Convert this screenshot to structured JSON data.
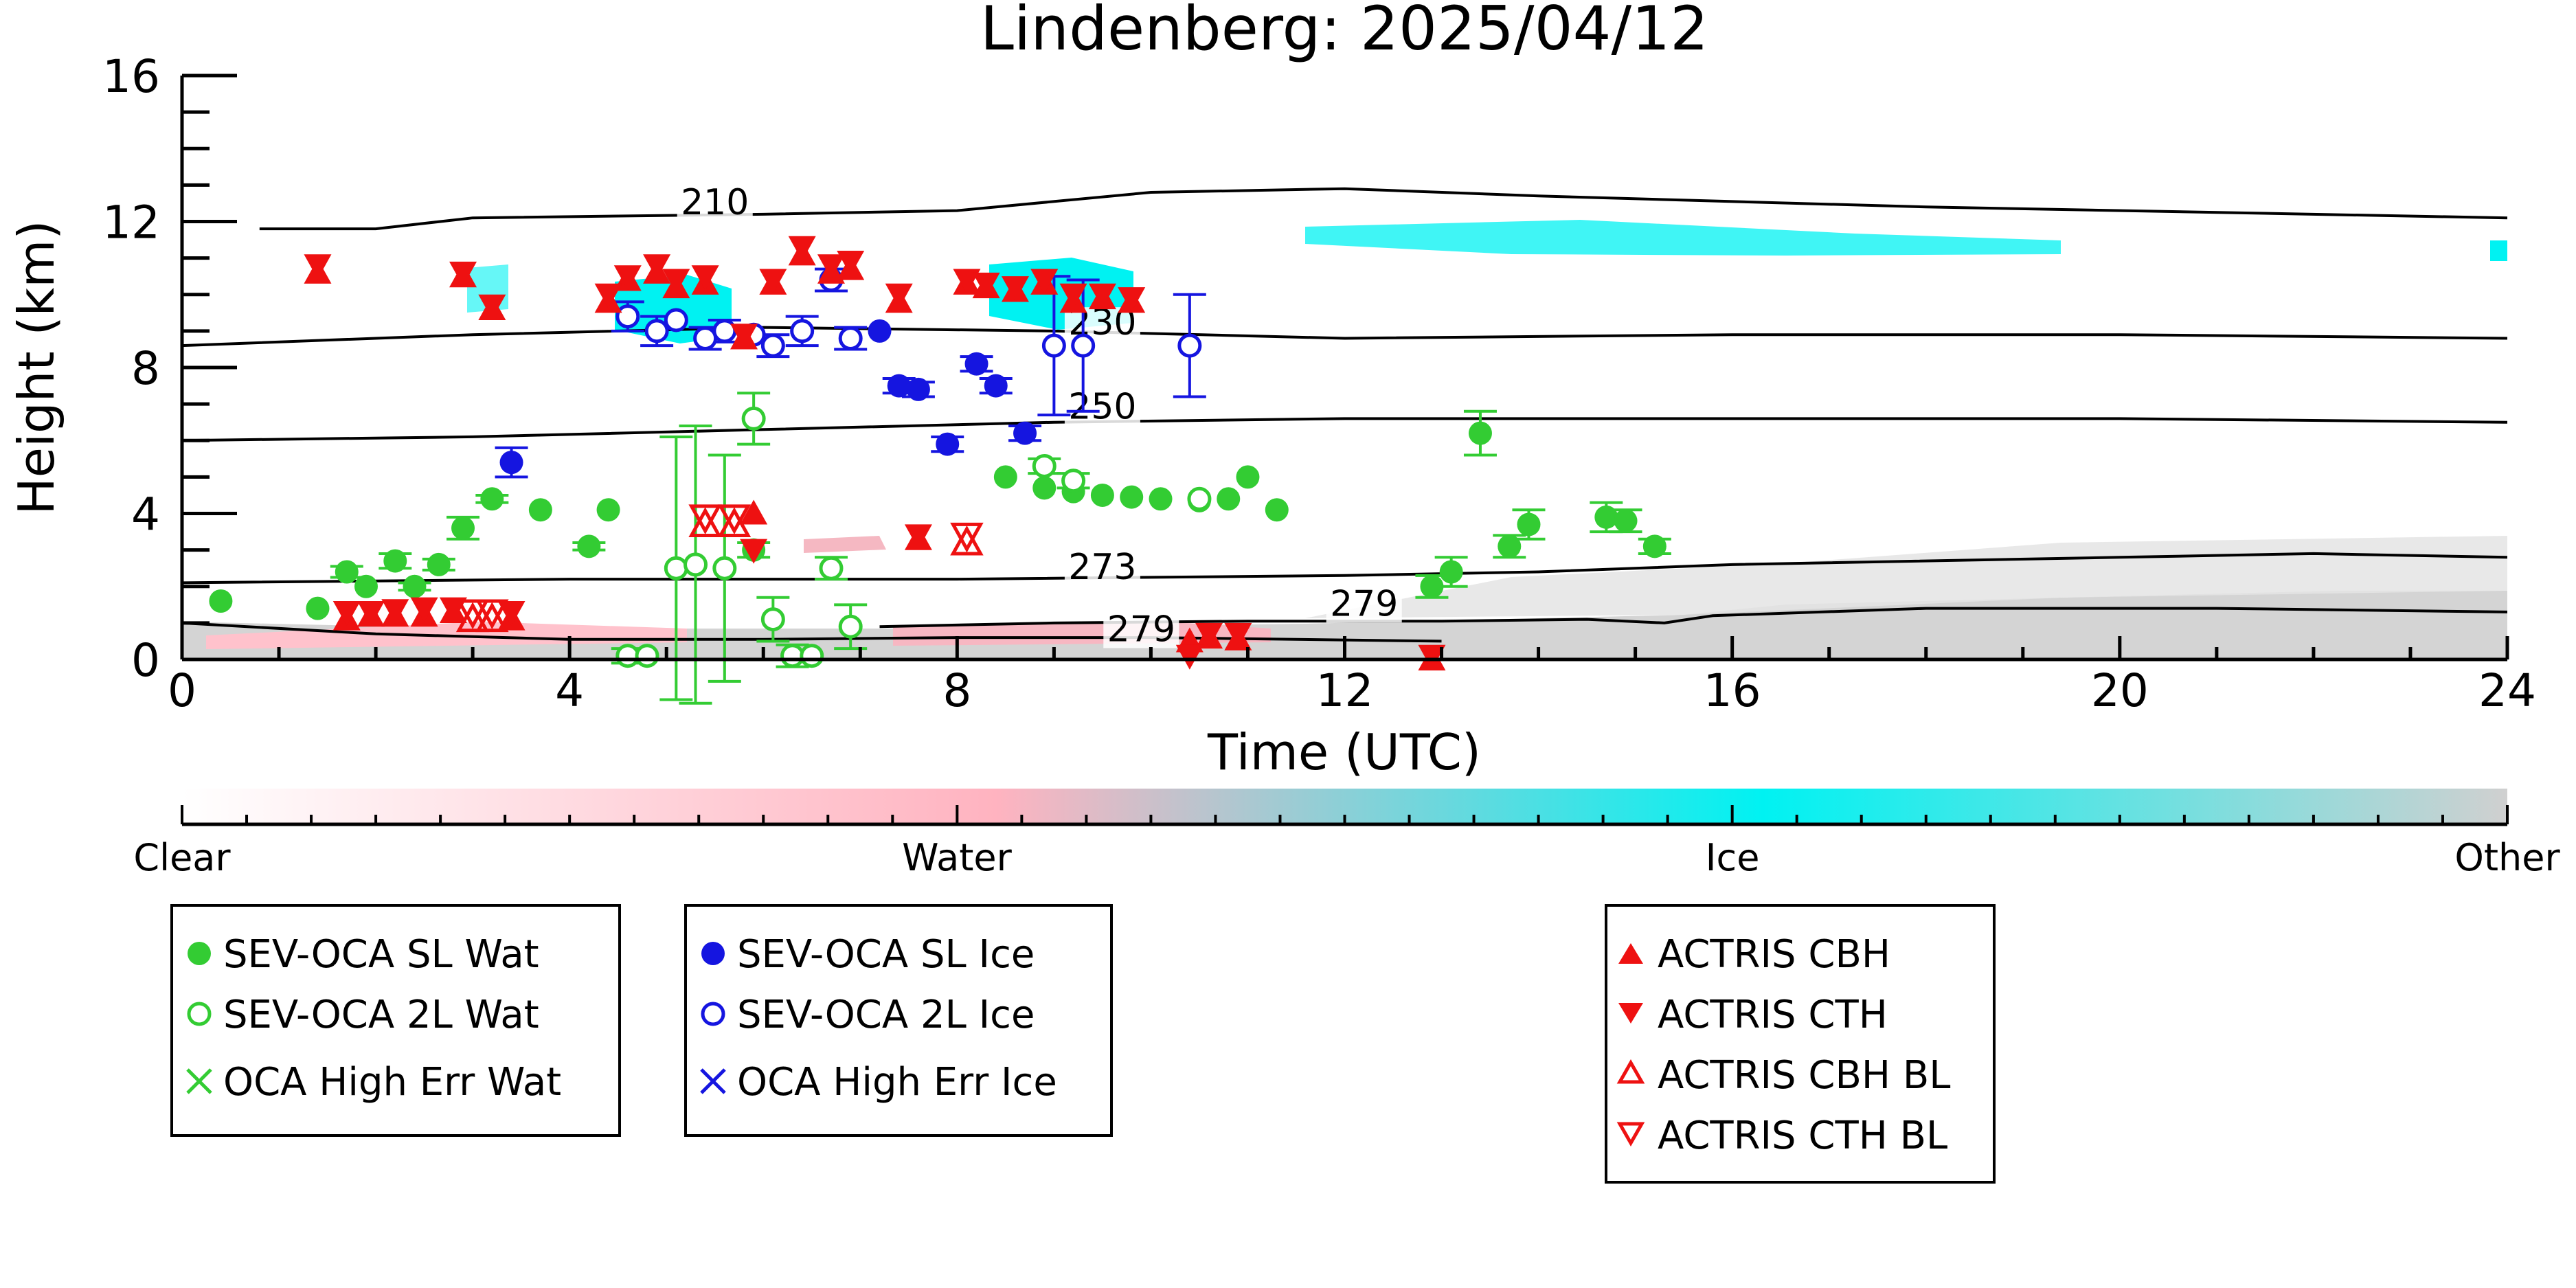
{
  "chart_data": {
    "type": "scatter",
    "title": "Lindenberg: 2025/04/12",
    "xlabel": "Time (UTC)",
    "ylabel": "Height (km)",
    "xlim": [
      0,
      24
    ],
    "ylim": [
      0,
      16
    ],
    "x_ticks": [
      0,
      4,
      8,
      12,
      16,
      20,
      24
    ],
    "y_ticks": [
      0,
      4,
      8,
      12,
      16
    ],
    "grid": false,
    "colors": {
      "water_sl": "#33cc33",
      "water_2l": "#33cc33",
      "ice": "#1515e0",
      "actris": "#ee1111",
      "cloud_water": "#ffb3c0",
      "cloud_ice": "#00f2f2",
      "cloud_other": "#d0d0d0"
    },
    "contours": [
      {
        "label": "210",
        "label_at": [
          5.5,
          12.2
        ],
        "points": [
          [
            0.8,
            11.8
          ],
          [
            2,
            11.8
          ],
          [
            3,
            12.1
          ],
          [
            6,
            12.2
          ],
          [
            8,
            12.3
          ],
          [
            10,
            12.8
          ],
          [
            12,
            12.9
          ],
          [
            14,
            12.7
          ],
          [
            18,
            12.4
          ],
          [
            24,
            12.1
          ]
        ]
      },
      {
        "label": "230",
        "label_at": [
          9.5,
          8.9
        ],
        "points": [
          [
            0,
            8.6
          ],
          [
            3,
            8.9
          ],
          [
            6,
            9.1
          ],
          [
            9,
            9.0
          ],
          [
            12,
            8.8
          ],
          [
            16,
            8.9
          ],
          [
            20,
            8.9
          ],
          [
            24,
            8.8
          ]
        ]
      },
      {
        "label": "250",
        "label_at": [
          9.5,
          6.6
        ],
        "points": [
          [
            0,
            6.0
          ],
          [
            3,
            6.1
          ],
          [
            6,
            6.3
          ],
          [
            9,
            6.5
          ],
          [
            12,
            6.6
          ],
          [
            16,
            6.6
          ],
          [
            20,
            6.6
          ],
          [
            24,
            6.5
          ]
        ]
      },
      {
        "label": "273",
        "label_at": [
          9.5,
          2.2
        ],
        "points": [
          [
            0,
            2.1
          ],
          [
            4,
            2.2
          ],
          [
            8,
            2.2
          ],
          [
            12,
            2.3
          ],
          [
            14,
            2.4
          ],
          [
            16,
            2.6
          ],
          [
            20,
            2.8
          ],
          [
            22,
            2.9
          ],
          [
            24,
            2.8
          ]
        ]
      },
      {
        "label": "279",
        "label_at": [
          12.2,
          1.2
        ],
        "points": [
          [
            7.2,
            0.9
          ],
          [
            9,
            1.0
          ],
          [
            11,
            1.05
          ],
          [
            13,
            1.05
          ],
          [
            14.5,
            1.1
          ],
          [
            15.3,
            1.0
          ],
          [
            15.8,
            1.2
          ],
          [
            18,
            1.4
          ],
          [
            21,
            1.4
          ],
          [
            24,
            1.3
          ]
        ]
      },
      {
        "label": "279",
        "label_at": [
          9.9,
          0.5
        ],
        "points": [
          [
            0,
            1.0
          ],
          [
            2,
            0.7
          ],
          [
            4,
            0.55
          ],
          [
            6,
            0.55
          ],
          [
            8,
            0.6
          ],
          [
            10,
            0.6
          ],
          [
            11.5,
            0.55
          ],
          [
            13,
            0.5
          ]
        ]
      }
    ],
    "series": [
      {
        "name": "SEV-OCA SL Wat",
        "marker": "filled-circle",
        "color": "#33cc33",
        "points": [
          [
            0.4,
            1.6,
            0
          ],
          [
            1.4,
            1.4,
            0
          ],
          [
            1.7,
            2.4,
            0.15
          ],
          [
            1.9,
            2.0,
            0
          ],
          [
            2.2,
            2.7,
            0.2
          ],
          [
            2.4,
            2.0,
            0.1
          ],
          [
            2.65,
            2.6,
            0.15
          ],
          [
            2.9,
            3.6,
            0.3
          ],
          [
            3.2,
            4.4,
            0.1
          ],
          [
            3.7,
            4.1,
            0
          ],
          [
            4.2,
            3.1,
            0.1
          ],
          [
            4.4,
            4.1,
            0
          ],
          [
            5.9,
            3.0,
            0.2
          ],
          [
            8.5,
            5.0,
            0
          ],
          [
            8.9,
            4.7,
            0
          ],
          [
            9.2,
            4.6,
            0
          ],
          [
            9.5,
            4.5,
            0
          ],
          [
            9.8,
            4.45,
            0
          ],
          [
            10.1,
            4.4,
            0
          ],
          [
            10.5,
            4.35,
            0
          ],
          [
            10.8,
            4.4,
            0
          ],
          [
            11.0,
            5.0,
            0
          ],
          [
            11.3,
            4.1,
            0
          ],
          [
            12.9,
            2.0,
            0.3
          ],
          [
            13.1,
            2.4,
            0.4
          ],
          [
            13.4,
            6.2,
            0.6
          ],
          [
            13.7,
            3.1,
            0.3
          ],
          [
            13.9,
            3.7,
            0.4
          ],
          [
            14.7,
            3.9,
            0.4
          ],
          [
            14.9,
            3.8,
            0.3
          ],
          [
            15.2,
            3.1,
            0.2
          ]
        ]
      },
      {
        "name": "SEV-OCA 2L Wat",
        "marker": "open-circle",
        "color": "#33cc33",
        "points": [
          [
            4.6,
            0.1,
            0.2
          ],
          [
            4.8,
            0.1,
            0
          ],
          [
            5.1,
            2.5,
            3.6
          ],
          [
            5.3,
            2.6,
            3.8
          ],
          [
            5.6,
            2.5,
            3.1
          ],
          [
            5.9,
            6.6,
            0.7
          ],
          [
            6.1,
            1.1,
            0.6
          ],
          [
            6.3,
            0.1,
            0.3
          ],
          [
            6.5,
            0.1,
            0
          ],
          [
            6.7,
            2.5,
            0.3
          ],
          [
            6.9,
            0.9,
            0.6
          ],
          [
            8.9,
            5.3,
            0.2
          ],
          [
            9.2,
            4.9,
            0.2
          ],
          [
            10.5,
            4.4,
            0
          ]
        ]
      },
      {
        "name": "OCA High Err Wat",
        "marker": "x",
        "color": "#33cc33",
        "points": []
      },
      {
        "name": "SEV-OCA SL Ice",
        "marker": "filled-circle",
        "color": "#1515e0",
        "points": [
          [
            3.4,
            5.4,
            0.4
          ],
          [
            7.2,
            9.0,
            0
          ],
          [
            7.4,
            7.5,
            0.2
          ],
          [
            7.6,
            7.4,
            0.2
          ],
          [
            7.9,
            5.9,
            0.2
          ],
          [
            8.2,
            8.1,
            0.2
          ],
          [
            8.4,
            7.5,
            0.2
          ],
          [
            8.7,
            6.2,
            0.2
          ]
        ]
      },
      {
        "name": "SEV-OCA 2L Ice",
        "marker": "open-circle",
        "color": "#1515e0",
        "points": [
          [
            4.6,
            9.4,
            0.4
          ],
          [
            4.9,
            9.0,
            0.4
          ],
          [
            5.1,
            9.3,
            0
          ],
          [
            5.4,
            8.8,
            0.3
          ],
          [
            5.6,
            9.0,
            0.3
          ],
          [
            5.9,
            8.9,
            0
          ],
          [
            6.1,
            8.6,
            0.3
          ],
          [
            6.4,
            9.0,
            0.4
          ],
          [
            6.7,
            10.4,
            0.3
          ],
          [
            6.9,
            8.8,
            0.3
          ],
          [
            9.0,
            8.6,
            1.9
          ],
          [
            9.3,
            8.6,
            1.8
          ],
          [
            10.4,
            8.6,
            1.4
          ]
        ]
      },
      {
        "name": "OCA High Err Ice",
        "marker": "x",
        "color": "#1515e0",
        "points": []
      },
      {
        "name": "ACTRIS CBH",
        "marker": "filled-triangle-up",
        "color": "#ee1111",
        "points": [
          [
            1.4,
            10.6
          ],
          [
            2.9,
            10.5
          ],
          [
            3.2,
            9.6
          ],
          [
            4.4,
            9.8
          ],
          [
            4.6,
            10.4
          ],
          [
            4.9,
            10.6
          ],
          [
            5.1,
            10.2
          ],
          [
            5.4,
            10.3
          ],
          [
            5.8,
            8.8
          ],
          [
            5.9,
            4.0
          ],
          [
            6.1,
            10.3
          ],
          [
            6.4,
            11.1
          ],
          [
            6.7,
            10.6
          ],
          [
            6.9,
            10.7
          ],
          [
            7.4,
            9.8
          ],
          [
            8.1,
            10.3
          ],
          [
            8.3,
            10.2
          ],
          [
            8.6,
            10.1
          ],
          [
            8.9,
            10.3
          ],
          [
            9.2,
            9.8
          ],
          [
            9.5,
            9.9
          ],
          [
            9.8,
            9.8
          ],
          [
            7.6,
            3.3
          ],
          [
            10.4,
            0.5
          ],
          [
            10.6,
            0.6
          ],
          [
            10.9,
            0.55
          ],
          [
            12.9,
            0.0
          ],
          [
            1.7,
            1.1
          ],
          [
            1.95,
            1.2
          ],
          [
            2.2,
            1.2
          ],
          [
            2.5,
            1.2
          ],
          [
            2.8,
            1.3
          ],
          [
            3.4,
            1.1
          ]
        ]
      },
      {
        "name": "ACTRIS CTH",
        "marker": "filled-triangle-down",
        "color": "#ee1111",
        "points": [
          [
            1.4,
            10.8
          ],
          [
            2.9,
            10.6
          ],
          [
            3.2,
            9.7
          ],
          [
            4.4,
            10.0
          ],
          [
            4.6,
            10.5
          ],
          [
            4.9,
            10.8
          ],
          [
            5.1,
            10.4
          ],
          [
            5.4,
            10.5
          ],
          [
            5.8,
            8.9
          ],
          [
            5.9,
            3.0
          ],
          [
            6.1,
            10.4
          ],
          [
            6.4,
            11.3
          ],
          [
            6.7,
            10.8
          ],
          [
            6.9,
            10.9
          ],
          [
            7.4,
            10.0
          ],
          [
            8.1,
            10.4
          ],
          [
            8.3,
            10.3
          ],
          [
            8.6,
            10.2
          ],
          [
            8.9,
            10.4
          ],
          [
            9.2,
            10.0
          ],
          [
            9.5,
            10.0
          ],
          [
            9.8,
            9.9
          ],
          [
            7.6,
            3.4
          ],
          [
            10.4,
            0.1
          ],
          [
            10.6,
            0.7
          ],
          [
            10.9,
            0.7
          ],
          [
            12.9,
            0.1
          ],
          [
            1.7,
            1.3
          ],
          [
            1.95,
            1.3
          ],
          [
            2.2,
            1.35
          ],
          [
            2.5,
            1.4
          ],
          [
            2.8,
            1.4
          ],
          [
            3.4,
            1.3
          ]
        ]
      },
      {
        "name": "ACTRIS CBH BL",
        "marker": "open-triangle-up",
        "color": "#ee1111",
        "points": [
          [
            3.0,
            1.1
          ],
          [
            3.2,
            1.1
          ],
          [
            5.4,
            3.7
          ],
          [
            5.7,
            3.7
          ],
          [
            8.1,
            3.2
          ]
        ]
      },
      {
        "name": "ACTRIS CTH BL",
        "marker": "open-triangle-down",
        "color": "#ee1111",
        "points": [
          [
            3.0,
            1.3
          ],
          [
            3.2,
            1.3
          ],
          [
            5.4,
            3.9
          ],
          [
            5.7,
            3.9
          ],
          [
            8.1,
            3.4
          ]
        ]
      }
    ],
    "colorbar": {
      "labels": [
        "Clear",
        "Water",
        "Ice",
        "Other"
      ],
      "gradient": [
        "#ffffff",
        "#ffb3c0",
        "#00f2f2",
        "#d0d0d0"
      ]
    },
    "legends": [
      {
        "entries": [
          "SEV-OCA SL Wat",
          "SEV-OCA 2L Wat",
          "OCA High Err Wat"
        ]
      },
      {
        "entries": [
          "SEV-OCA SL Ice",
          "SEV-OCA 2L Ice",
          "OCA High Err Ice"
        ]
      },
      {
        "entries": [
          "ACTRIS CBH",
          "ACTRIS CTH",
          "ACTRIS CBH BL",
          "ACTRIS CTH BL"
        ]
      }
    ]
  }
}
